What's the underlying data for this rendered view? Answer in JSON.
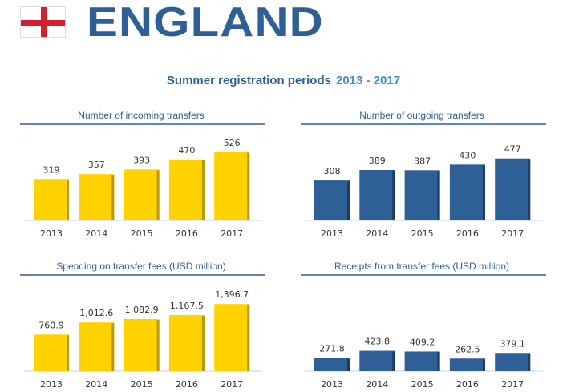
{
  "header": {
    "country": "ENGLAND",
    "flag": "england-flag-icon",
    "subtitle": "Summer registration periods",
    "period": "2013 - 2017"
  },
  "colors": {
    "yellow": "#FFD200",
    "yellow_shade": "#B89800",
    "blue": "#2E5F96",
    "blue_shade": "#1B3C62",
    "title": "#2E5F96"
  },
  "chart_data": [
    {
      "type": "bar",
      "title": "Number of incoming transfers",
      "categories": [
        "2013",
        "2014",
        "2015",
        "2016",
        "2017"
      ],
      "values": [
        319,
        357,
        393,
        470,
        526
      ],
      "labels": [
        "319",
        "357",
        "393",
        "470",
        "526"
      ],
      "color": "#FFD200"
    },
    {
      "type": "bar",
      "title": "Number of outgoing transfers",
      "categories": [
        "2013",
        "2014",
        "2015",
        "2016",
        "2017"
      ],
      "values": [
        308,
        389,
        387,
        430,
        477
      ],
      "labels": [
        "308",
        "389",
        "387",
        "430",
        "477"
      ],
      "color": "#2E5F96"
    },
    {
      "type": "bar",
      "title": "Spending on transfer fees (USD million)",
      "categories": [
        "2013",
        "2014",
        "2015",
        "2016",
        "2017"
      ],
      "values": [
        760.9,
        1012.6,
        1082.9,
        1167.5,
        1396.7
      ],
      "labels": [
        "760.9",
        "1,012.6",
        "1,082.9",
        "1,167.5",
        "1,396.7"
      ],
      "color": "#FFD200"
    },
    {
      "type": "bar",
      "title": "Receipts from transfer fees (USD million)",
      "categories": [
        "2013",
        "2014",
        "2015",
        "2016",
        "2017"
      ],
      "values": [
        271.8,
        423.8,
        409.2,
        262.5,
        379.1
      ],
      "labels": [
        "271.8",
        "423.8",
        "409.2",
        "262.5",
        "379.1"
      ],
      "color": "#2E5F96"
    }
  ]
}
